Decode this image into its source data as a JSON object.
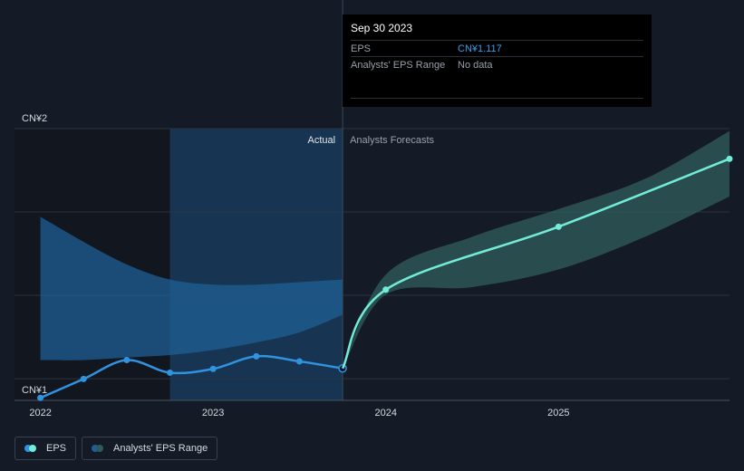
{
  "colors": {
    "background": "#151b26",
    "actual_line": "#2f93e0",
    "forecast_line": "#72ecd8",
    "actual_band": "#1f5f96",
    "forecast_band": "#2e5a5a",
    "highlight_region": "#173552",
    "past_region": "#11161f",
    "grid": "#2c333e",
    "axis_text": "#d6d9de",
    "muted_text": "#9aa0a8"
  },
  "tooltip": {
    "date": "Sep 30 2023",
    "eps_label": "EPS",
    "eps_value": "CN¥1.117",
    "range_label": "Analysts' EPS Range",
    "range_value": "No data"
  },
  "legend": {
    "eps_label": "EPS",
    "range_label": "Analysts' EPS Range"
  },
  "chart_data": {
    "type": "line",
    "y_tick_labels": [
      "CN¥2",
      "CN¥1"
    ],
    "x_tick_labels": [
      "2022",
      "2023",
      "2024",
      "2025"
    ],
    "ylim": [
      0.99,
      2.07
    ],
    "xlim": [
      2021.85,
      2025.99
    ],
    "divider_labels": {
      "left": "Actual",
      "right": "Analysts Forecasts"
    },
    "series": [
      {
        "name": "EPS",
        "kind": "actual",
        "x": [
          2022.0,
          2022.25,
          2022.5,
          2022.75,
          2023.0,
          2023.25,
          2023.5,
          2023.75
        ],
        "y": [
          1.0,
          1.075,
          1.15,
          1.1,
          1.115,
          1.165,
          1.145,
          1.117
        ]
      },
      {
        "name": "EPS",
        "kind": "forecast",
        "x": [
          2023.75,
          2024.0,
          2025.0,
          2025.99
        ],
        "y": [
          1.117,
          1.43,
          1.68,
          1.95
        ]
      }
    ],
    "bands": [
      {
        "name": "Analysts' EPS Range",
        "kind": "actual",
        "x": [
          2022.0,
          2022.25,
          2022.5,
          2022.75,
          2023.0,
          2023.25,
          2023.5,
          2023.75
        ],
        "upper": [
          1.72,
          1.62,
          1.53,
          1.47,
          1.45,
          1.45,
          1.46,
          1.47
        ],
        "lower": [
          1.15,
          1.15,
          1.16,
          1.17,
          1.19,
          1.22,
          1.26,
          1.33
        ]
      },
      {
        "name": "Analysts' EPS Range",
        "kind": "forecast",
        "x": [
          2023.75,
          2024.0,
          2024.5,
          2025.0,
          2025.5,
          2025.99
        ],
        "upper": [
          1.117,
          1.49,
          1.64,
          1.75,
          1.87,
          2.06
        ],
        "lower": [
          1.117,
          1.41,
          1.44,
          1.51,
          1.64,
          1.8
        ]
      }
    ],
    "highlight_x": [
      2022.75,
      2023.75
    ]
  }
}
